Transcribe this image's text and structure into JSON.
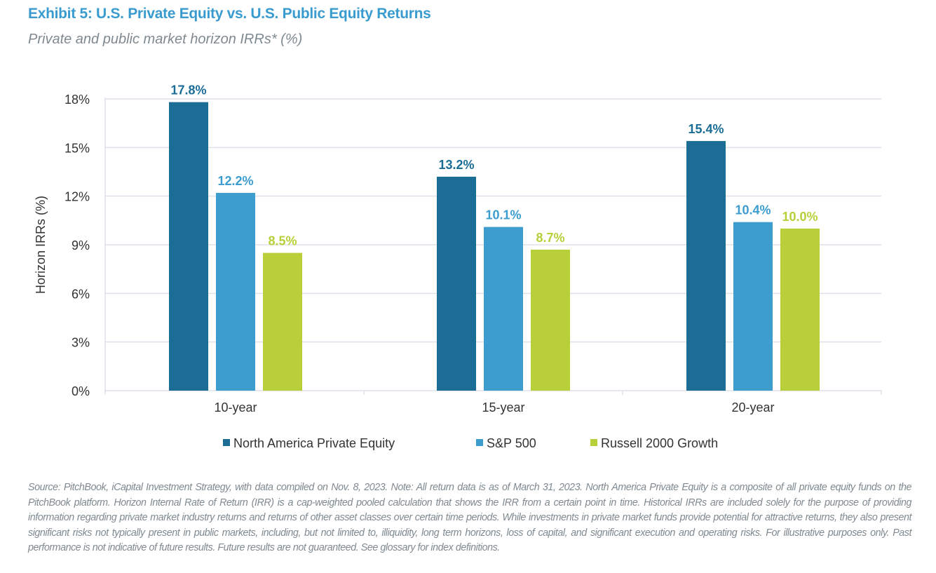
{
  "title": "Exhibit 5: U.S. Private Equity vs. U.S. Public Equity Returns",
  "subtitle": "Private and public market horizon IRRs* (%)",
  "chart_data": {
    "type": "bar",
    "categories": [
      "10-year",
      "15-year",
      "20-year"
    ],
    "series": [
      {
        "name": "North America Private Equity",
        "values": [
          17.8,
          13.2,
          15.4
        ],
        "labels": [
          "17.8%",
          "13.2%",
          "15.4%"
        ],
        "color": "#1b6d96"
      },
      {
        "name": "S&P 500",
        "values": [
          12.2,
          10.1,
          10.4
        ],
        "labels": [
          "12.2%",
          "10.1%",
          "10.4%"
        ],
        "color": "#3c9dce"
      },
      {
        "name": "Russell 2000 Growth",
        "values": [
          8.5,
          8.7,
          10.0
        ],
        "labels": [
          "8.5%",
          "8.7%",
          "10.0%"
        ],
        "color": "#b8cf3a"
      }
    ],
    "ylabel": "Horizon IRRs (%)",
    "xlabel": "",
    "ylim": [
      0,
      18
    ],
    "yticks": [
      "0%",
      "3%",
      "6%",
      "9%",
      "12%",
      "15%",
      "18%"
    ],
    "grid": true,
    "legend": "bottom"
  },
  "footer": "Source: PitchBook, iCapital Investment Strategy, with data compiled on Nov. 8, 2023. Note: All return data is as of March 31, 2023. North America Private Equity is a composite of all private equity funds on the PitchBook platform. Horizon Internal Rate of Return (IRR) is a cap-weighted pooled calculation that shows the IRR from a certain point in time. Historical IRRs are included solely for the purpose of providing information regarding private market industry returns and returns of other asset classes over certain time periods. While investments in private market funds provide potential for attractive returns, they also present significant risks not typically present in public markets, including, but not limited to, illiquidity, long term horizons, loss of capital, and significant execution and operating risks. For illustrative purposes only. Past performance is not indicative of future results. Future results are not guaranteed. See glossary for index definitions."
}
